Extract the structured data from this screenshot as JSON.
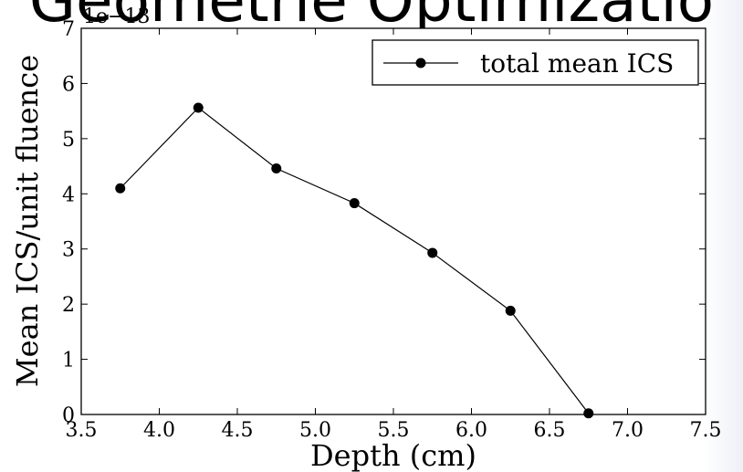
{
  "background": {
    "slide_title_fragment": "Geometrie Optimizatio",
    "bottom_text_fragment": ""
  },
  "chart_data": {
    "type": "line",
    "title": "",
    "xlabel": "Depth (cm)",
    "ylabel": "Mean ICS/unit fluence",
    "y_scale_label": "1e−13",
    "xlim": [
      3.5,
      7.5
    ],
    "ylim": [
      0,
      7
    ],
    "x_ticks": [
      "3.5",
      "4.0",
      "4.5",
      "5.0",
      "5.5",
      "6.0",
      "6.5",
      "7.0",
      "7.5"
    ],
    "y_ticks": [
      "0",
      "1",
      "2",
      "3",
      "4",
      "5",
      "6",
      "7"
    ],
    "grid": false,
    "legend_position": "top-right",
    "series": [
      {
        "name": "total mean ICS",
        "color": "#000000",
        "marker": "circle",
        "x": [
          3.75,
          4.25,
          4.75,
          5.25,
          5.75,
          6.25,
          6.75
        ],
        "y": [
          4.1,
          5.56,
          4.46,
          3.83,
          2.93,
          1.88,
          0.02
        ]
      }
    ]
  }
}
